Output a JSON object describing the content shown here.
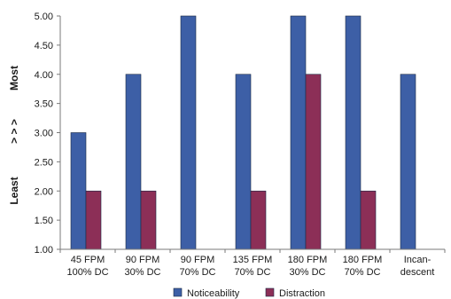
{
  "chart_data": {
    "type": "bar",
    "categories": [
      [
        "45 FPM",
        "100% DC"
      ],
      [
        "90 FPM",
        "30% DC"
      ],
      [
        "90 FPM",
        "70% DC"
      ],
      [
        "135 FPM",
        "70% DC"
      ],
      [
        "180 FPM",
        "30% DC"
      ],
      [
        "180 FPM",
        "70% DC"
      ],
      [
        "Incan-",
        "descent"
      ]
    ],
    "series": [
      {
        "name": "Noticeability",
        "color": "#3d5fa6",
        "values": [
          3,
          4,
          5,
          4,
          5,
          5,
          4
        ]
      },
      {
        "name": "Distraction",
        "color": "#8c2f57",
        "values": [
          2,
          2,
          null,
          2,
          4,
          2,
          null
        ]
      }
    ],
    "ylim": [
      1,
      5
    ],
    "yticks": [
      "1.00",
      "1.50",
      "2.00",
      "2.50",
      "3.00",
      "3.50",
      "4.00",
      "4.50",
      "5.00"
    ],
    "y_side_labels": {
      "top": "Most",
      "middle": "> > >",
      "bottom": "Least"
    },
    "grid": false,
    "legend_position": "bottom"
  }
}
